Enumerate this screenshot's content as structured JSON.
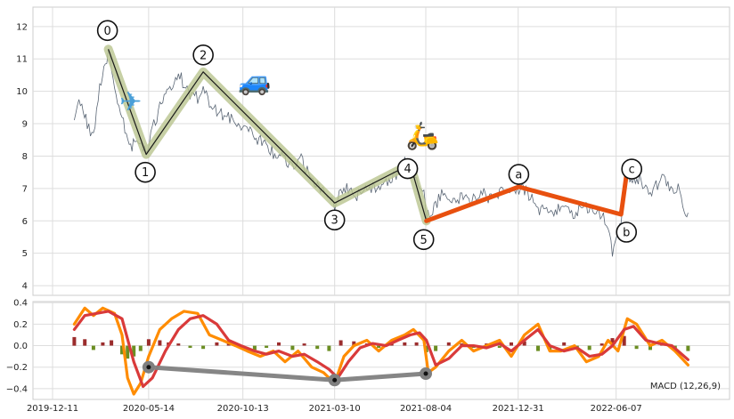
{
  "chart_data": [
    {
      "type": "line",
      "panel": "price",
      "y_ticks": [
        "4",
        "5",
        "6",
        "7",
        "8",
        "9",
        "10",
        "11",
        "12"
      ],
      "ylim": [
        3.7,
        12.6
      ],
      "grid": true,
      "series": [
        {
          "color": "#5a6675",
          "x": [
            "2020-01-15",
            "2020-01-25",
            "2020-02-05",
            "2020-02-15",
            "2020-02-25",
            "2020-03-05",
            "2020-03-10",
            "2020-03-20",
            "2020-04-01",
            "2020-04-15",
            "2020-04-30",
            "2020-05-10",
            "2020-05-20",
            "2020-06-01",
            "2020-06-15",
            "2020-07-01",
            "2020-07-15",
            "2020-08-01",
            "2020-08-10",
            "2020-08-20",
            "2020-09-01",
            "2020-09-15",
            "2020-10-01",
            "2020-10-15",
            "2020-11-01",
            "2020-11-15",
            "2020-12-01",
            "2020-12-15",
            "2021-01-01",
            "2021-01-15",
            "2021-02-01",
            "2021-02-15",
            "2021-03-01",
            "2021-03-10",
            "2021-03-20",
            "2021-04-01",
            "2021-04-15",
            "2021-05-01",
            "2021-05-15",
            "2021-06-01",
            "2021-06-15",
            "2021-07-01",
            "2021-07-10",
            "2021-07-20",
            "2021-08-01",
            "2021-08-05",
            "2021-08-15",
            "2021-09-01",
            "2021-09-15",
            "2021-10-01",
            "2021-10-15",
            "2021-11-01",
            "2021-11-15",
            "2021-12-01",
            "2021-12-15",
            "2022-01-01",
            "2022-01-15",
            "2022-02-01",
            "2022-02-15",
            "2022-03-01",
            "2022-03-15",
            "2022-04-01",
            "2022-04-15",
            "2022-05-01",
            "2022-05-15",
            "2022-05-25",
            "2022-06-01",
            "2022-06-10",
            "2022-06-15",
            "2022-06-25",
            "2022-07-01",
            "2022-07-15",
            "2022-08-01",
            "2022-08-15",
            "2022-08-25",
            "2022-09-01",
            "2022-09-15",
            "2022-09-25",
            "2022-10-01"
          ],
          "y": [
            9.2,
            9.7,
            9.0,
            8.6,
            10.1,
            10.8,
            11.3,
            10.2,
            9.2,
            8.3,
            8.5,
            8.0,
            8.8,
            9.5,
            10.0,
            10.6,
            10.0,
            9.8,
            10.1,
            9.7,
            9.4,
            9.2,
            9.1,
            8.9,
            8.6,
            8.4,
            8.1,
            8.0,
            7.6,
            7.9,
            7.3,
            7.0,
            6.8,
            6.5,
            6.9,
            7.0,
            6.8,
            7.1,
            7.0,
            7.2,
            7.4,
            7.8,
            7.6,
            7.3,
            6.8,
            6.1,
            6.3,
            6.9,
            6.5,
            6.8,
            6.6,
            6.9,
            6.7,
            6.9,
            6.8,
            7.0,
            6.9,
            6.3,
            6.4,
            6.3,
            6.4,
            6.2,
            6.5,
            6.3,
            6.2,
            5.9,
            5.0,
            5.7,
            6.1,
            7.8,
            7.2,
            7.3,
            6.8,
            7.2,
            7.3,
            6.9,
            7.1,
            6.3,
            6.25
          ]
        }
      ],
      "waves": [
        {
          "style": "impulse",
          "color": "#b9c48f",
          "points": [
            {
              "label": "0",
              "x": "2020-03-10",
              "y": 11.3
            },
            {
              "label": "1",
              "x": "2020-05-10",
              "y": 8.05
            },
            {
              "label": "2",
              "x": "2020-08-10",
              "y": 10.6
            },
            {
              "label": "3",
              "x": "2021-03-10",
              "y": 6.55
            },
            {
              "label": "4",
              "x": "2021-07-10",
              "y": 7.75
            },
            {
              "label": "5",
              "x": "2021-08-05",
              "y": 6.0
            }
          ]
        },
        {
          "style": "correction",
          "color": "#e8500f",
          "points": [
            {
              "label": "5",
              "x": "2021-08-05",
              "y": 6.0
            },
            {
              "label": "a",
              "x": "2022-01-01",
              "y": 7.05
            },
            {
              "label": "b",
              "x": "2022-06-15",
              "y": 6.2
            },
            {
              "label": "c",
              "x": "2022-06-25",
              "y": 7.6
            }
          ]
        }
      ],
      "icons": [
        {
          "name": "airplane-icon",
          "glyph": "✈",
          "color": "#4a9fd8",
          "x": "2020-04-15",
          "y": 9.4
        },
        {
          "name": "car-icon",
          "glyph": "🚙",
          "color": "#2f8fd8",
          "x": "2020-11-01",
          "y": 10.05
        },
        {
          "name": "scooter-icon",
          "glyph": "🛵",
          "color": "#e8a33c",
          "x": "2021-07-30",
          "y": 8.35
        }
      ]
    },
    {
      "type": "line",
      "panel": "macd",
      "annotation": "MACD (12,26,9)",
      "y_ticks": [
        "−0.4",
        "−0.2",
        "0.0",
        "0.2",
        "0.4"
      ],
      "ylim": [
        -0.5,
        0.41
      ],
      "grid": true,
      "x_ticks": [
        "2019-12-11",
        "2020-05-14",
        "2020-10-13",
        "2021-03-10",
        "2021-08-04",
        "2021-12-31",
        "2022-06-07"
      ],
      "series": [
        {
          "color": "#ff8c00",
          "x": [
            "2020-01-15",
            "2020-02-01",
            "2020-02-15",
            "2020-03-01",
            "2020-03-20",
            "2020-04-01",
            "2020-04-10",
            "2020-04-20",
            "2020-05-01",
            "2020-05-14",
            "2020-06-01",
            "2020-06-20",
            "2020-07-10",
            "2020-08-01",
            "2020-08-20",
            "2020-09-10",
            "2020-10-01",
            "2020-10-20",
            "2020-11-10",
            "2020-12-01",
            "2020-12-20",
            "2021-01-10",
            "2021-02-01",
            "2021-02-20",
            "2021-03-10",
            "2021-03-25",
            "2021-04-10",
            "2021-05-01",
            "2021-05-20",
            "2021-06-10",
            "2021-07-01",
            "2021-07-15",
            "2021-08-01",
            "2021-08-08",
            "2021-08-20",
            "2021-09-10",
            "2021-10-01",
            "2021-10-20",
            "2021-11-10",
            "2021-12-01",
            "2021-12-20",
            "2022-01-10",
            "2022-02-01",
            "2022-02-20",
            "2022-03-10",
            "2022-04-01",
            "2022-04-20",
            "2022-05-10",
            "2022-05-25",
            "2022-06-10",
            "2022-06-25",
            "2022-07-10",
            "2022-08-01",
            "2022-08-20",
            "2022-09-10",
            "2022-10-01"
          ],
          "y": [
            0.2,
            0.35,
            0.28,
            0.35,
            0.3,
            0.1,
            -0.3,
            -0.45,
            -0.35,
            -0.1,
            0.15,
            0.25,
            0.32,
            0.3,
            0.1,
            0.05,
            0.0,
            -0.05,
            -0.1,
            -0.05,
            -0.15,
            -0.05,
            -0.2,
            -0.25,
            -0.35,
            -0.1,
            0.0,
            0.05,
            -0.05,
            0.05,
            0.1,
            0.15,
            0.05,
            -0.25,
            -0.2,
            -0.05,
            0.05,
            -0.05,
            0.0,
            0.05,
            -0.1,
            0.1,
            0.2,
            -0.05,
            -0.05,
            0.0,
            -0.15,
            -0.1,
            0.05,
            -0.05,
            0.25,
            0.2,
            0.0,
            0.05,
            -0.05,
            -0.18
          ]
        },
        {
          "color": "#d93a3a",
          "x": [
            "2020-01-15",
            "2020-02-01",
            "2020-02-20",
            "2020-03-10",
            "2020-04-01",
            "2020-04-20",
            "2020-05-05",
            "2020-05-20",
            "2020-06-10",
            "2020-07-01",
            "2020-07-20",
            "2020-08-10",
            "2020-09-01",
            "2020-09-20",
            "2020-10-10",
            "2020-11-01",
            "2020-11-20",
            "2020-12-10",
            "2021-01-01",
            "2021-01-20",
            "2021-02-10",
            "2021-03-01",
            "2021-03-15",
            "2021-04-01",
            "2021-04-20",
            "2021-05-10",
            "2021-06-01",
            "2021-06-20",
            "2021-07-10",
            "2021-07-25",
            "2021-08-05",
            "2021-08-20",
            "2021-09-10",
            "2021-10-01",
            "2021-10-20",
            "2021-11-10",
            "2021-12-01",
            "2021-12-20",
            "2022-01-10",
            "2022-02-01",
            "2022-02-20",
            "2022-03-15",
            "2022-04-05",
            "2022-04-25",
            "2022-05-15",
            "2022-06-01",
            "2022-06-20",
            "2022-07-05",
            "2022-07-25",
            "2022-08-15",
            "2022-09-05",
            "2022-10-01"
          ],
          "y": [
            0.15,
            0.28,
            0.3,
            0.32,
            0.25,
            -0.15,
            -0.38,
            -0.3,
            -0.05,
            0.15,
            0.25,
            0.28,
            0.2,
            0.05,
            0.0,
            -0.05,
            -0.08,
            -0.05,
            -0.1,
            -0.08,
            -0.15,
            -0.22,
            -0.3,
            -0.15,
            -0.02,
            0.02,
            0.0,
            0.05,
            0.1,
            0.12,
            0.05,
            -0.18,
            -0.12,
            0.0,
            0.0,
            -0.02,
            0.02,
            -0.05,
            0.05,
            0.15,
            0.0,
            -0.05,
            -0.02,
            -0.1,
            -0.08,
            0.0,
            0.15,
            0.18,
            0.05,
            0.02,
            0.0,
            -0.13
          ]
        },
        {
          "color": "#7f7f7f",
          "x": [
            "2020-05-14",
            "2021-03-10",
            "2021-08-04"
          ],
          "y": [
            -0.2,
            -0.32,
            -0.26
          ]
        }
      ],
      "histogram": {
        "x": [
          "2020-01-15",
          "2020-02-01",
          "2020-02-15",
          "2020-03-01",
          "2020-03-15",
          "2020-04-01",
          "2020-04-10",
          "2020-04-20",
          "2020-05-01",
          "2020-05-14",
          "2020-06-01",
          "2020-06-15",
          "2020-07-01",
          "2020-07-20",
          "2020-08-10",
          "2020-09-01",
          "2020-09-20",
          "2020-10-10",
          "2020-11-01",
          "2020-11-20",
          "2020-12-10",
          "2021-01-01",
          "2021-01-20",
          "2021-02-10",
          "2021-03-01",
          "2021-03-20",
          "2021-04-10",
          "2021-05-01",
          "2021-05-20",
          "2021-06-10",
          "2021-07-01",
          "2021-07-20",
          "2021-08-05",
          "2021-08-20",
          "2021-09-10",
          "2021-10-01",
          "2021-10-20",
          "2021-11-10",
          "2021-12-01",
          "2021-12-20",
          "2022-01-10",
          "2022-02-01",
          "2022-02-20",
          "2022-03-15",
          "2022-04-05",
          "2022-04-25",
          "2022-05-15",
          "2022-06-01",
          "2022-06-20",
          "2022-07-10",
          "2022-08-01",
          "2022-08-20",
          "2022-09-10",
          "2022-10-01"
        ],
        "y": [
          0.08,
          0.06,
          -0.04,
          0.03,
          0.05,
          -0.08,
          -0.12,
          -0.1,
          -0.05,
          0.06,
          0.05,
          0.03,
          0.02,
          -0.02,
          -0.03,
          0.03,
          0.02,
          -0.02,
          -0.04,
          -0.02,
          0.03,
          -0.04,
          0.02,
          -0.03,
          -0.05,
          0.05,
          0.04,
          0.02,
          -0.02,
          0.02,
          0.03,
          0.03,
          -0.06,
          -0.05,
          0.03,
          0.02,
          -0.02,
          0.02,
          -0.02,
          0.03,
          0.04,
          -0.05,
          -0.04,
          0.03,
          -0.03,
          -0.04,
          0.02,
          0.07,
          0.09,
          -0.03,
          -0.04,
          0.03,
          -0.04,
          -0.05
        ],
        "positive_color": "#9b2c2c",
        "negative_color": "#6b8e23"
      },
      "markers": [
        {
          "x": "2020-05-14",
          "y": -0.2
        },
        {
          "x": "2021-03-10",
          "y": -0.32
        },
        {
          "x": "2021-08-04",
          "y": -0.26
        }
      ]
    }
  ]
}
